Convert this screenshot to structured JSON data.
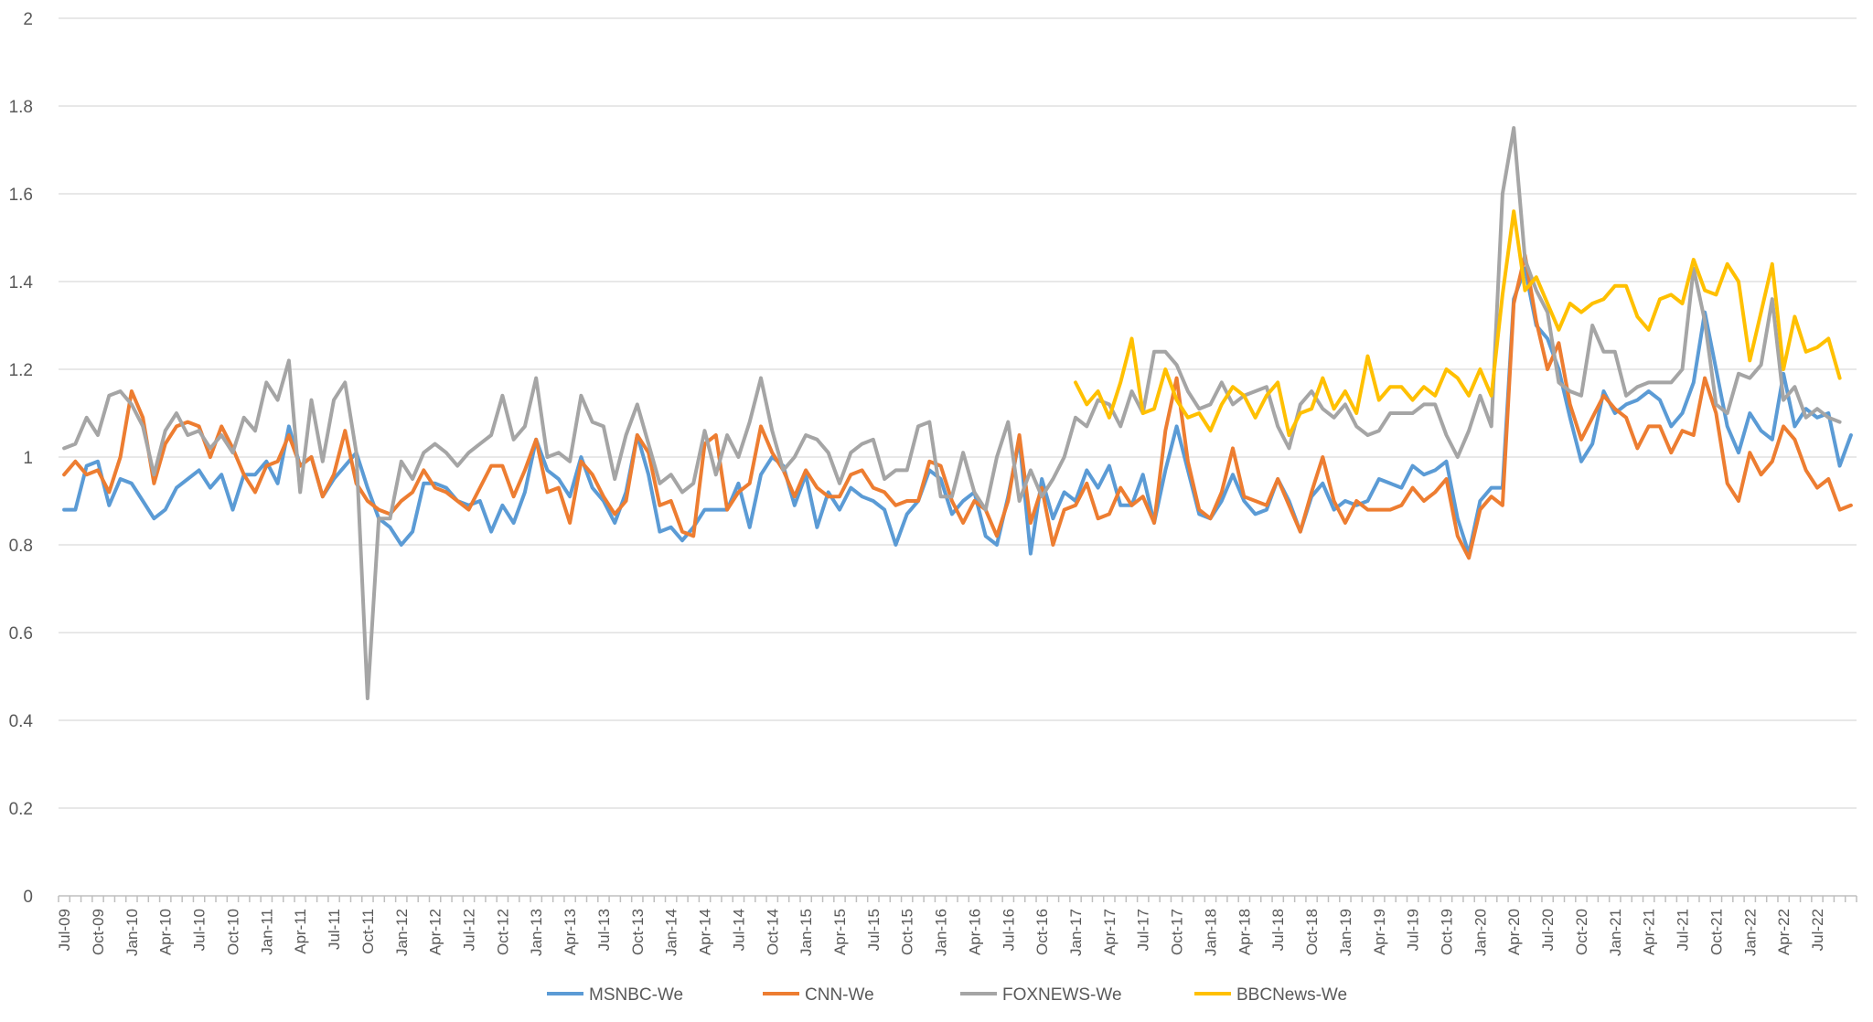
{
  "chart_data": {
    "type": "line",
    "title": "",
    "xlabel": "",
    "ylabel": "",
    "ylim": [
      0,
      2
    ],
    "ytick_labels": [
      "0",
      "0.2",
      "0.4",
      "0.6",
      "0.8",
      "1",
      "1.2",
      "1.4",
      "1.6",
      "1.8",
      "2"
    ],
    "yticks": [
      0,
      0.2,
      0.4,
      0.6,
      0.8,
      1,
      1.2,
      1.4,
      1.6,
      1.8,
      2
    ],
    "grid": true,
    "legend_position": "bottom",
    "x_labels": [
      "Jul-09",
      "Oct-09",
      "Jan-10",
      "Apr-10",
      "Jul-10",
      "Oct-10",
      "Jan-11",
      "Apr-11",
      "Jul-11",
      "Oct-11",
      "Jan-12",
      "Apr-12",
      "Jul-12",
      "Oct-12",
      "Jan-13",
      "Apr-13",
      "Jul-13",
      "Oct-13",
      "Jan-14",
      "Apr-14",
      "Jul-14",
      "Oct-14",
      "Jan-15",
      "Apr-15",
      "Jul-15",
      "Oct-15",
      "Jan-16",
      "Apr-16",
      "Jul-16",
      "Oct-16",
      "Jan-17",
      "Apr-17",
      "Jul-17",
      "Oct-17",
      "Jan-18",
      "Apr-18",
      "Jul-18",
      "Oct-18",
      "Jan-19",
      "Apr-19",
      "Jul-19",
      "Oct-19",
      "Jan-20",
      "Apr-20",
      "Jul-20",
      "Oct-20",
      "Jan-21",
      "Apr-21",
      "Jul-21",
      "Oct-21",
      "Jan-22",
      "Apr-22",
      "Jul-22"
    ],
    "period_count": 160,
    "series": [
      {
        "name": "MSNBC-We",
        "color": "#5B9BD5",
        "start_index": 0,
        "values": [
          0.88,
          0.88,
          0.98,
          0.99,
          0.89,
          0.95,
          0.94,
          0.9,
          0.86,
          0.88,
          0.93,
          0.95,
          0.97,
          0.93,
          0.96,
          0.88,
          0.96,
          0.96,
          0.99,
          0.94,
          1.07,
          0.98,
          1.0,
          0.91,
          0.95,
          0.98,
          1.01,
          0.93,
          0.86,
          0.84,
          0.8,
          0.83,
          0.94,
          0.94,
          0.93,
          0.9,
          0.89,
          0.9,
          0.83,
          0.89,
          0.85,
          0.92,
          1.04,
          0.97,
          0.95,
          0.91,
          1.0,
          0.93,
          0.9,
          0.85,
          0.92,
          1.05,
          0.96,
          0.83,
          0.84,
          0.81,
          0.84,
          0.88,
          0.88,
          0.88,
          0.94,
          0.84,
          0.96,
          1.0,
          0.98,
          0.89,
          0.96,
          0.84,
          0.92,
          0.88,
          0.93,
          0.91,
          0.9,
          0.88,
          0.8,
          0.87,
          0.9,
          0.97,
          0.95,
          0.87,
          0.9,
          0.92,
          0.82,
          0.8,
          0.91,
          1.04,
          0.78,
          0.95,
          0.86,
          0.92,
          0.9,
          0.97,
          0.93,
          0.98,
          0.89,
          0.89,
          0.96,
          0.85,
          0.97,
          1.07,
          0.97,
          0.87,
          0.86,
          0.9,
          0.96,
          0.9,
          0.87,
          0.88,
          0.95,
          0.9,
          0.83,
          0.91,
          0.94,
          0.88,
          0.9,
          0.89,
          0.9,
          0.95,
          0.94,
          0.93,
          0.98,
          0.96,
          0.97,
          0.99,
          0.86,
          0.78,
          0.9,
          0.93,
          0.93,
          1.36,
          1.43,
          1.3,
          1.27,
          1.2,
          1.09,
          0.99,
          1.03,
          1.15,
          1.1,
          1.12,
          1.13,
          1.15,
          1.13,
          1.07,
          1.1,
          1.17,
          1.33,
          1.2,
          1.07,
          1.01,
          1.1,
          1.06,
          1.04,
          1.19,
          1.07,
          1.11,
          1.09,
          1.1,
          0.98,
          1.05
        ]
      },
      {
        "name": "CNN-We",
        "color": "#ED7D31",
        "start_index": 0,
        "values": [
          0.96,
          0.99,
          0.96,
          0.97,
          0.92,
          1.0,
          1.15,
          1.09,
          0.94,
          1.03,
          1.07,
          1.08,
          1.07,
          1.0,
          1.07,
          1.02,
          0.96,
          0.92,
          0.98,
          0.99,
          1.05,
          0.98,
          1.0,
          0.91,
          0.96,
          1.06,
          0.94,
          0.9,
          0.88,
          0.87,
          0.9,
          0.92,
          0.97,
          0.93,
          0.92,
          0.9,
          0.88,
          0.93,
          0.98,
          0.98,
          0.91,
          0.97,
          1.04,
          0.92,
          0.93,
          0.85,
          0.99,
          0.96,
          0.91,
          0.87,
          0.9,
          1.05,
          1.01,
          0.89,
          0.9,
          0.83,
          0.82,
          1.03,
          1.05,
          0.88,
          0.92,
          0.94,
          1.07,
          1.01,
          0.97,
          0.91,
          0.97,
          0.93,
          0.91,
          0.91,
          0.96,
          0.97,
          0.93,
          0.92,
          0.89,
          0.9,
          0.9,
          0.99,
          0.98,
          0.9,
          0.85,
          0.9,
          0.88,
          0.82,
          0.9,
          1.05,
          0.85,
          0.93,
          0.8,
          0.88,
          0.89,
          0.94,
          0.86,
          0.87,
          0.93,
          0.89,
          0.91,
          0.85,
          1.06,
          1.18,
          0.99,
          0.88,
          0.86,
          0.92,
          1.02,
          0.91,
          0.9,
          0.89,
          0.95,
          0.89,
          0.83,
          0.92,
          1.0,
          0.9,
          0.85,
          0.9,
          0.88,
          0.88,
          0.88,
          0.89,
          0.93,
          0.9,
          0.92,
          0.95,
          0.82,
          0.77,
          0.88,
          0.91,
          0.89,
          1.35,
          1.46,
          1.31,
          1.2,
          1.26,
          1.12,
          1.04,
          1.09,
          1.14,
          1.11,
          1.09,
          1.02,
          1.07,
          1.07,
          1.01,
          1.06,
          1.05,
          1.18,
          1.1,
          0.94,
          0.9,
          1.01,
          0.96,
          0.99,
          1.07,
          1.04,
          0.97,
          0.93,
          0.95,
          0.88,
          0.89
        ]
      },
      {
        "name": "FOXNEWS-We",
        "color": "#A5A5A5",
        "start_index": 0,
        "values": [
          1.02,
          1.03,
          1.09,
          1.05,
          1.14,
          1.15,
          1.12,
          1.07,
          0.96,
          1.06,
          1.1,
          1.05,
          1.06,
          1.02,
          1.05,
          1.01,
          1.09,
          1.06,
          1.17,
          1.13,
          1.22,
          0.92,
          1.13,
          0.99,
          1.13,
          1.17,
          1.01,
          0.45,
          0.86,
          0.86,
          0.99,
          0.95,
          1.01,
          1.03,
          1.01,
          0.98,
          1.01,
          1.03,
          1.05,
          1.14,
          1.04,
          1.07,
          1.18,
          1.0,
          1.01,
          0.99,
          1.14,
          1.08,
          1.07,
          0.95,
          1.05,
          1.12,
          1.03,
          0.94,
          0.96,
          0.92,
          0.94,
          1.06,
          0.96,
          1.05,
          1.0,
          1.08,
          1.18,
          1.06,
          0.97,
          1.0,
          1.05,
          1.04,
          1.01,
          0.94,
          1.01,
          1.03,
          1.04,
          0.95,
          0.97,
          0.97,
          1.07,
          1.08,
          0.91,
          0.91,
          1.01,
          0.92,
          0.88,
          1.0,
          1.08,
          0.9,
          0.97,
          0.91,
          0.95,
          1.0,
          1.09,
          1.07,
          1.13,
          1.12,
          1.07,
          1.15,
          1.1,
          1.24,
          1.24,
          1.21,
          1.15,
          1.11,
          1.12,
          1.17,
          1.12,
          1.14,
          1.15,
          1.16,
          1.07,
          1.02,
          1.12,
          1.15,
          1.11,
          1.09,
          1.12,
          1.07,
          1.05,
          1.06,
          1.1,
          1.1,
          1.1,
          1.12,
          1.12,
          1.05,
          1.0,
          1.06,
          1.14,
          1.07,
          1.6,
          1.75,
          1.45,
          1.38,
          1.33,
          1.17,
          1.15,
          1.14,
          1.3,
          1.24,
          1.24,
          1.14,
          1.16,
          1.17,
          1.17,
          1.17,
          1.2,
          1.43,
          1.31,
          1.12,
          1.1,
          1.19,
          1.18,
          1.21,
          1.36,
          1.13,
          1.16,
          1.09,
          1.11,
          1.09,
          1.08
        ]
      },
      {
        "name": "BBCNews-We",
        "color": "#FFC000",
        "start_index": 90,
        "values": [
          1.17,
          1.12,
          1.15,
          1.09,
          1.17,
          1.27,
          1.1,
          1.11,
          1.2,
          1.13,
          1.09,
          1.1,
          1.06,
          1.12,
          1.16,
          1.14,
          1.09,
          1.14,
          1.17,
          1.05,
          1.1,
          1.11,
          1.18,
          1.11,
          1.15,
          1.1,
          1.23,
          1.13,
          1.16,
          1.16,
          1.13,
          1.16,
          1.14,
          1.2,
          1.18,
          1.14,
          1.2,
          1.14,
          1.37,
          1.56,
          1.38,
          1.41,
          1.35,
          1.29,
          1.35,
          1.33,
          1.35,
          1.36,
          1.39,
          1.39,
          1.32,
          1.29,
          1.36,
          1.37,
          1.35,
          1.45,
          1.38,
          1.37,
          1.44,
          1.4,
          1.22,
          1.33,
          1.44,
          1.2,
          1.32,
          1.24,
          1.25,
          1.27,
          1.18
        ]
      }
    ]
  }
}
